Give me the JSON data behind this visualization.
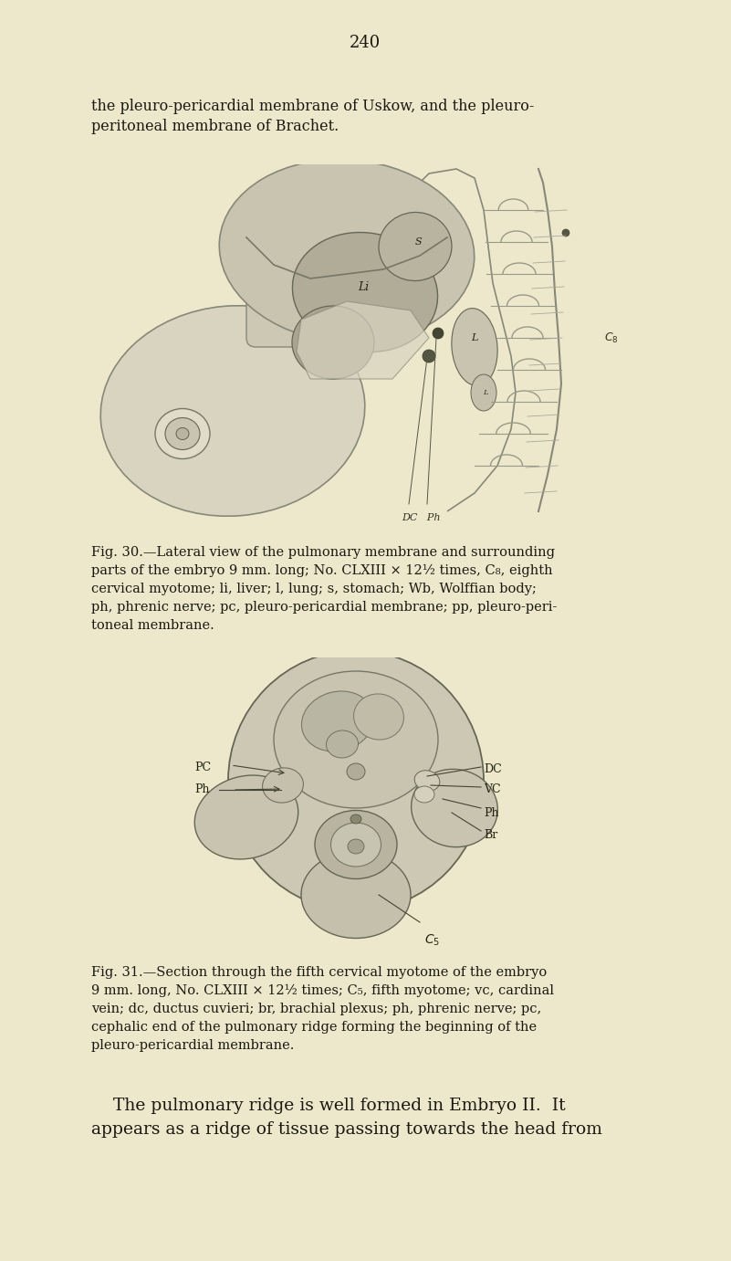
{
  "bg_color": "#ede8cc",
  "text_color": "#1a1810",
  "page_number": "240",
  "top_text_line1": "the pleuro-pericardial membrane of Uskow, and the pleuro-",
  "top_text_line2": "peritoneal membrane of Brachet.",
  "fig30_caption_lines": [
    "Fig. 30.—Lateral view of the pulmonary membrane and surrounding",
    "parts of the embryo 9 mm. long; No. CLXIII × 12½ times, C₈, eighth",
    "cervical myotome; li, liver; l, lung; s, stomach; Wb, Wolffian body;",
    "ph, phrenic nerve; pc, pleuro-pericardial membrane; pp, pleuro-peri-",
    "toneal membrane."
  ],
  "fig31_caption_lines": [
    "Fig. 31.—Section through the fifth cervical myotome of the embryo",
    "9 mm. long, No. CLXIII × 12½ times; C₅, fifth myotome; vc, cardinal",
    "vein; dc, ductus cuvieri; br, brachial plexus; ph, phrenic nerve; pc,",
    "cephalic end of the pulmonary ridge forming the beginning of the",
    "pleuro-pericardial membrane."
  ],
  "bottom_text_lines": [
    "    The pulmonary ridge is well formed in Embryo II.  It",
    "appears as a ridge of tissue passing towards the head from"
  ]
}
